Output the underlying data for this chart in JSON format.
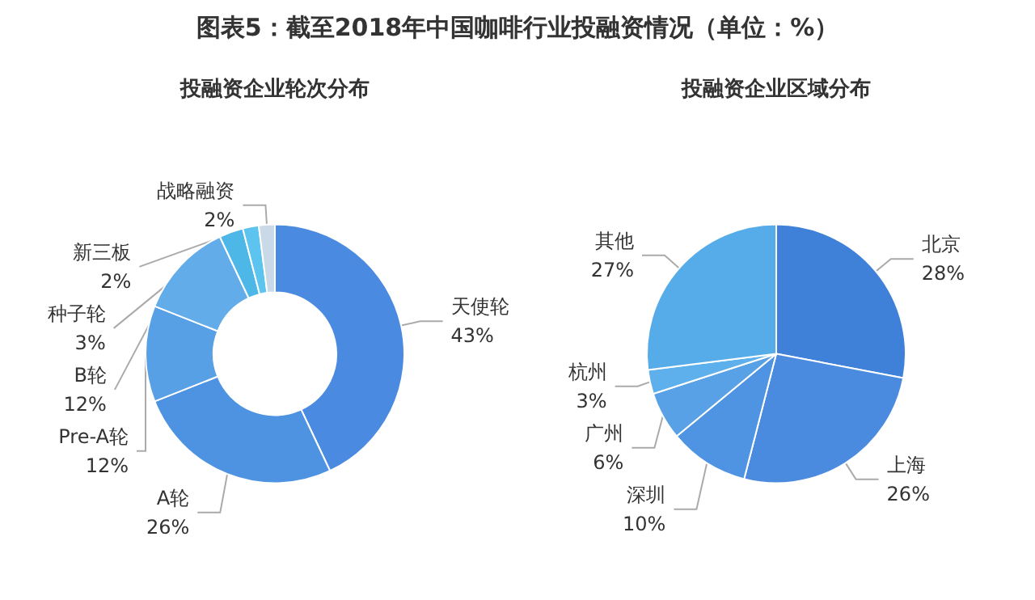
{
  "chart_data": [
    {
      "type": "donut",
      "title": "图表5：截至2018年中国咖啡行业投融资情况（单位：%）",
      "subtitle": "投融资企业轮次分布",
      "categories": [
        "天使轮",
        "A轮",
        "Pre-A轮",
        "B轮",
        "种子轮",
        "新三板",
        "战略融资"
      ],
      "values": [
        43,
        26,
        12,
        12,
        3,
        2,
        2
      ],
      "value_labels": [
        "43%",
        "26%",
        "12%",
        "12%",
        "3%",
        "2%",
        "2%"
      ],
      "colors": [
        "#4a8ae0",
        "#4e93e2",
        "#58a0e6",
        "#62ace9",
        "#4db7e8",
        "#5cc4ef",
        "#c9d9e8"
      ]
    },
    {
      "type": "pie",
      "title": "投融资企业区域分布",
      "categories": [
        "北京",
        "上海",
        "深圳",
        "广州",
        "杭州",
        "其他"
      ],
      "values": [
        28,
        26,
        10,
        6,
        3,
        27
      ],
      "value_labels": [
        "28%",
        "26%",
        "10%",
        "6%",
        "3%",
        "27%"
      ],
      "colors": [
        "#3f80d8",
        "#4a8be0",
        "#4f94e2",
        "#58a1e6",
        "#5db0ec",
        "#56ace8"
      ]
    }
  ]
}
